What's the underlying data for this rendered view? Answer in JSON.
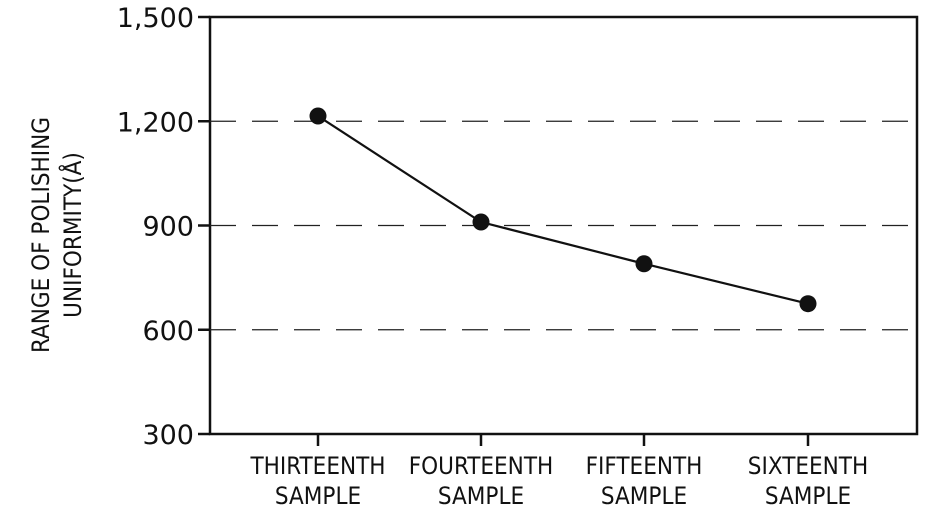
{
  "chart_data": {
    "type": "line",
    "categories": [
      [
        "THIRTEENTH",
        "SAMPLE"
      ],
      [
        "FOURTEENTH",
        "SAMPLE"
      ],
      [
        "FIFTEENTH",
        "SAMPLE"
      ],
      [
        "SIXTEENTH",
        "SAMPLE"
      ]
    ],
    "values": [
      1215,
      910,
      790,
      675
    ],
    "yticks": [
      300,
      600,
      900,
      1200,
      1500
    ],
    "ytick_labels": [
      "300",
      "600",
      "900",
      "1,200",
      "1,500"
    ],
    "ylim": [
      300,
      1500
    ],
    "ylabel_lines": [
      "RANGE OF POLISHING",
      "UNIFORMITY(Å)"
    ],
    "xlabel": "",
    "grid": "dashed-horizontal",
    "line_color": "#111111",
    "marker": "filled-circle"
  }
}
